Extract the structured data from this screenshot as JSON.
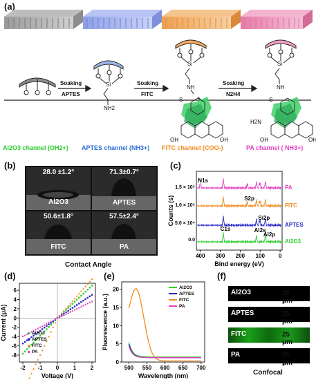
{
  "panels": {
    "a": "(a)",
    "b": "(b)",
    "c": "(c)",
    "d": "(d)",
    "e": "(e)",
    "f": "(f)"
  },
  "scheme": {
    "step1": {
      "line1": "Soaking",
      "line2": "APTES"
    },
    "step2": {
      "line1": "Soaking",
      "line2": "FITC"
    },
    "step3": {
      "line1": "Soaking",
      "line2": "N2H4"
    },
    "channels": [
      {
        "text": "Al2O3 channel (OH2+)",
        "color": "#2ecc2e"
      },
      {
        "text": "APTES channel (NH3+)",
        "color": "#2f6fd6"
      },
      {
        "text": "FITC channel (COO-)",
        "color": "#f08a1a"
      },
      {
        "text": "PA  channel ( NH3+)",
        "color": "#e33fbf"
      }
    ],
    "atoms": {
      "o": "O",
      "si": "Si",
      "nh2": "NH2",
      "nh": "NH",
      "s": "S",
      "c": "C",
      "oh": "OH",
      "h2n": "H2N",
      "n": "N"
    }
  },
  "contact_angle": {
    "title": "Contact Angle",
    "items": [
      {
        "value": "28.0 ±1.2°",
        "label": "Al2O3"
      },
      {
        "value": "71.3±0.7°",
        "label": "APTES"
      },
      {
        "value": "50.6±1.8°",
        "label": "FITC"
      },
      {
        "value": "57.5±2.4°",
        "label": "PA"
      }
    ]
  },
  "xps": {
    "type": "line",
    "xlabel": "Bind energy (eV)",
    "ylabel": "Counts (s)",
    "xticks": [
      "400",
      "300",
      "200",
      "100",
      "0"
    ],
    "yticks": [
      "1.5 × 10⁵",
      "1.0 × 10⁵",
      "5.0 × 10⁴",
      "0.0"
    ],
    "series": [
      {
        "name": "PA",
        "color": "#e33fbf"
      },
      {
        "name": "FITC",
        "color": "#f08a1a"
      },
      {
        "name": "APTES",
        "color": "#2626c8"
      },
      {
        "name": "Al2O3",
        "color": "#2ecc2e"
      }
    ],
    "peaks": {
      "n1s": "N1s",
      "c1s": "C1s",
      "s2p_upper": "S2p",
      "si2p": "Si2p",
      "al2s": "Al2s",
      "al2p": "Al2p"
    }
  },
  "iv": {
    "type": "scatter",
    "xlabel": "Voltage (V)",
    "ylabel": "Current (μA)",
    "xlim": [
      -2.2,
      2.2
    ],
    "ylim": [
      -9.5,
      7.5
    ],
    "xticks": [
      "-2",
      "-1",
      "0",
      "1",
      "2"
    ],
    "yticks": [
      "6",
      "4",
      "2",
      "0",
      "-2",
      "-4",
      "-6",
      "-8"
    ],
    "series": [
      {
        "name": "Al2O3",
        "color": "#2ecc2e",
        "slope": 3.5
      },
      {
        "name": "APTES",
        "color": "#2626c8",
        "slope": 2.5
      },
      {
        "name": "FITC",
        "color": "#f08a1a",
        "slope": 4.2
      },
      {
        "name": "PA",
        "color": "#e33fbf",
        "slope": 1.8
      }
    ]
  },
  "fluorescence": {
    "type": "line",
    "xlabel": "Wavelength (nm)",
    "ylabel": "Fluorescence (a.u.)",
    "xlim": [
      480,
      710
    ],
    "ylim": [
      0,
      22
    ],
    "xticks": [
      "500",
      "550",
      "600",
      "650",
      "700"
    ],
    "yticks": [
      "20",
      "15",
      "10",
      "5",
      "0"
    ],
    "series": [
      {
        "name": "Al2O3",
        "color": "#2ecc2e"
      },
      {
        "name": "APTES",
        "color": "#2626c8"
      },
      {
        "name": "FITC",
        "color": "#f08a1a"
      },
      {
        "name": "PA",
        "color": "#e33fbf"
      }
    ]
  },
  "confocal": {
    "title": "Confocal",
    "items": [
      {
        "label": "Al2O3",
        "size": "25 μm"
      },
      {
        "label": "APTES",
        "size": "25 μm"
      },
      {
        "label": "FITC",
        "size": "25 μm"
      },
      {
        "label": "PA",
        "size": "25 μm"
      }
    ]
  }
}
